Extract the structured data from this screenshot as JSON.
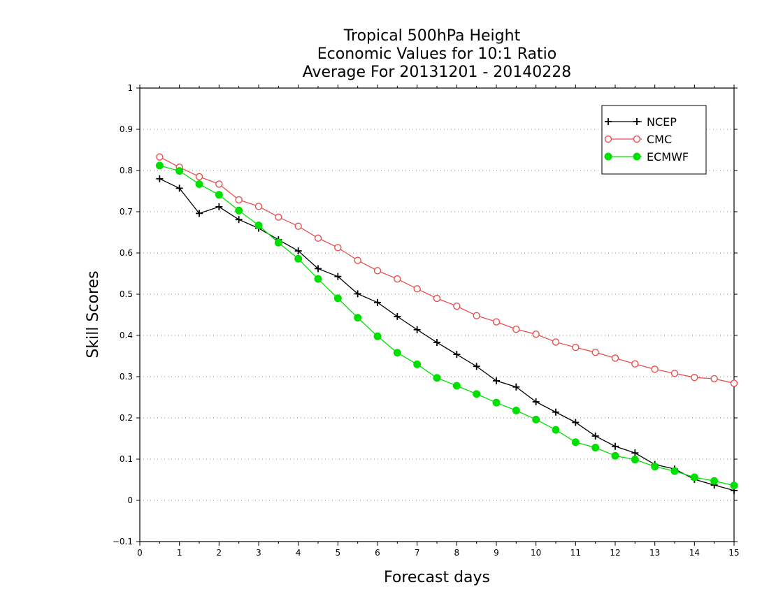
{
  "chart_data": {
    "type": "line",
    "title_lines": [
      "Tropical 500hPa Height",
      "Economic Values for 10:1 Ratio",
      "Average For 20131201 - 20140228"
    ],
    "xlabel": "Forecast days",
    "ylabel": "Skill Scores",
    "xlim": [
      0,
      15
    ],
    "ylim": [
      -0.1,
      1
    ],
    "xticks": [
      0,
      1,
      2,
      3,
      4,
      5,
      6,
      7,
      8,
      9,
      10,
      11,
      12,
      13,
      14,
      15
    ],
    "xtick_labels": [
      "0",
      "1",
      "2",
      "3",
      "4",
      "5",
      "6",
      "7",
      "8",
      "9",
      "10",
      "11",
      "12",
      "13",
      "14",
      "15"
    ],
    "yticks": [
      -0.1,
      0,
      0.1,
      0.2,
      0.3,
      0.4,
      0.5,
      0.6,
      0.7,
      0.8,
      0.9,
      1
    ],
    "ytick_labels": [
      "−0.1",
      "0",
      "0.1",
      "0.2",
      "0.3",
      "0.4",
      "0.5",
      "0.6",
      "0.7",
      "0.8",
      "0.9",
      "1"
    ],
    "grid": "horizontal dotted",
    "legend_position": "top-right",
    "x": [
      0.5,
      1,
      1.5,
      2,
      2.5,
      3,
      3.5,
      4,
      4.5,
      5,
      5.5,
      6,
      6.5,
      7,
      7.5,
      8,
      8.5,
      9,
      9.5,
      10,
      10.5,
      11,
      11.5,
      12,
      12.5,
      13,
      13.5,
      14,
      14.5,
      15
    ],
    "series": [
      {
        "name": "NCEP",
        "color": "#000000",
        "marker": "plus",
        "values": [
          0.78,
          0.757,
          0.696,
          0.712,
          0.681,
          0.66,
          0.632,
          0.605,
          0.562,
          0.543,
          0.501,
          0.48,
          0.446,
          0.414,
          0.383,
          0.354,
          0.325,
          0.29,
          0.275,
          0.239,
          0.214,
          0.189,
          0.156,
          0.131,
          0.115,
          0.087,
          0.076,
          0.051,
          0.037,
          0.024
        ]
      },
      {
        "name": "CMC",
        "color": "#e84f4f",
        "marker": "open-circle",
        "values": [
          0.833,
          0.808,
          0.785,
          0.767,
          0.729,
          0.713,
          0.687,
          0.665,
          0.636,
          0.613,
          0.582,
          0.557,
          0.537,
          0.513,
          0.49,
          0.471,
          0.448,
          0.433,
          0.415,
          0.403,
          0.384,
          0.371,
          0.359,
          0.345,
          0.331,
          0.318,
          0.308,
          0.298,
          0.295,
          0.284
        ]
      },
      {
        "name": "ECMWF",
        "color": "#00e000",
        "marker": "filled-circle",
        "values": [
          0.812,
          0.799,
          0.767,
          0.741,
          0.703,
          0.667,
          0.625,
          0.586,
          0.537,
          0.49,
          0.443,
          0.398,
          0.358,
          0.33,
          0.297,
          0.278,
          0.258,
          0.237,
          0.218,
          0.196,
          0.171,
          0.141,
          0.128,
          0.108,
          0.099,
          0.082,
          0.071,
          0.056,
          0.047,
          0.036
        ]
      }
    ]
  }
}
